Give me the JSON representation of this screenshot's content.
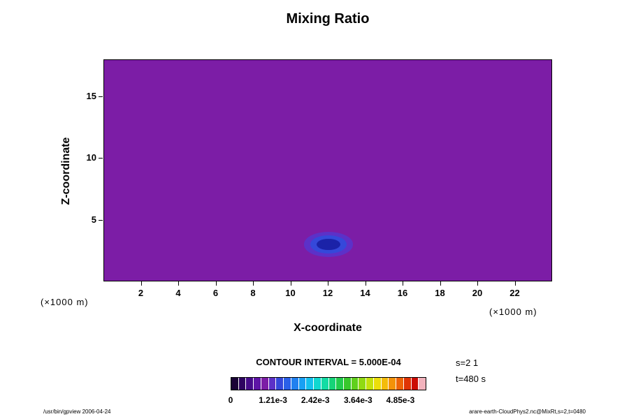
{
  "title": "Mixing Ratio",
  "xlabel": "X-coordinate",
  "ylabel": "Z-coordinate",
  "x_unit": "(×1000 m)",
  "y_unit": "(×1000 m)",
  "contour_text": "CONTOUR INTERVAL = 5.000E-04",
  "annotations": {
    "s": "s=2 1",
    "t": "t=480 s"
  },
  "footer_left": "/usr/bin/gpview 2006-04-24",
  "footer_right": "arare-earth-CloudPhys2.nc@MixRt,s=2,t=0480",
  "chart_data": {
    "type": "heatmap",
    "field_description": "Filled-contour plot of mixing ratio; field is near zero (uniform purple) everywhere except a small blob of elevated values centered near x=12 (x1000 m), z=3 (x1000 m).",
    "title": "Mixing Ratio",
    "xlabel": "X-coordinate",
    "ylabel": "Z-coordinate",
    "x_unit_label": "(×1000 m)",
    "z_unit_label": "(×1000 m)",
    "xlim": [
      0,
      24
    ],
    "zlim": [
      0,
      18
    ],
    "xticks": [
      2,
      4,
      6,
      8,
      10,
      12,
      14,
      16,
      18,
      20,
      22
    ],
    "yticks": [
      5,
      10,
      15
    ],
    "grid": false,
    "contour_interval": 0.0005,
    "background_color": "#7c1da6",
    "blob": {
      "cx": 12,
      "cz": 3.05,
      "rings": [
        {
          "rx": 1.3,
          "rz": 1.0,
          "color": "#5c31c8"
        },
        {
          "rx": 0.98,
          "rz": 0.74,
          "color": "#3548da"
        },
        {
          "rx": 0.62,
          "rz": 0.46,
          "color": "#1b22a8"
        }
      ]
    },
    "colorbar": {
      "position": "bottom",
      "max": 0.00559,
      "colors": [
        "#1a0236",
        "#2e0460",
        "#460c8a",
        "#5e14a6",
        "#7c1da6",
        "#5c31c8",
        "#3548da",
        "#2a60e8",
        "#2080f0",
        "#18a0f4",
        "#14c0ee",
        "#10d8d0",
        "#12dca4",
        "#16d478",
        "#22cc4c",
        "#38c82c",
        "#60d01c",
        "#90da12",
        "#c4e20c",
        "#ecde0a",
        "#f4bc0a",
        "#f49208",
        "#ee6406",
        "#e03404",
        "#cc0c04",
        "#f2b2bc"
      ],
      "ticks": [
        {
          "label": "0",
          "value": 0
        },
        {
          "label": "1.21e-3",
          "value": 0.00121
        },
        {
          "label": "2.42e-3",
          "value": 0.00242
        },
        {
          "label": "3.64e-3",
          "value": 0.00364
        },
        {
          "label": "4.85e-3",
          "value": 0.00485
        }
      ]
    }
  }
}
